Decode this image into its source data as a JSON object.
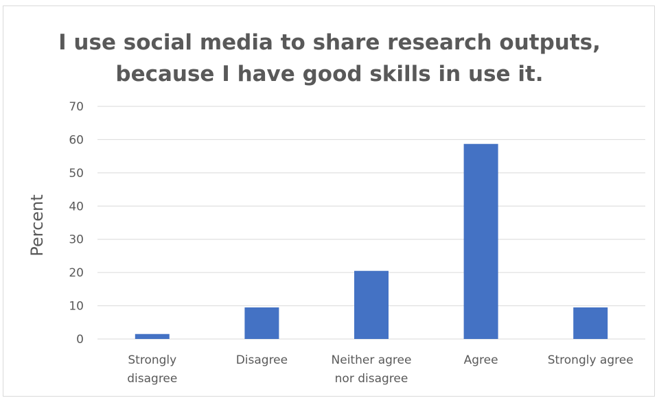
{
  "chart_data": {
    "type": "bar",
    "title_lines": [
      "I use social media to share  research outputs,",
      "because I have good skills in use it."
    ],
    "categories": [
      [
        "Strongly",
        "disagree"
      ],
      [
        "Disagree"
      ],
      [
        "Neither agree",
        "nor disagree"
      ],
      [
        "Agree"
      ],
      [
        "Strongly agree"
      ]
    ],
    "values": [
      1.5,
      9.5,
      20.5,
      58.7,
      9.5
    ],
    "xlabel": "",
    "ylabel": "Percent",
    "ylim": [
      0,
      70
    ],
    "yticks": [
      0,
      10,
      20,
      30,
      40,
      50,
      60,
      70
    ],
    "grid": true,
    "legend": "none",
    "bar_color": "#4472c4",
    "grid_color": "#d9d9d9",
    "text_color": "#595959"
  }
}
